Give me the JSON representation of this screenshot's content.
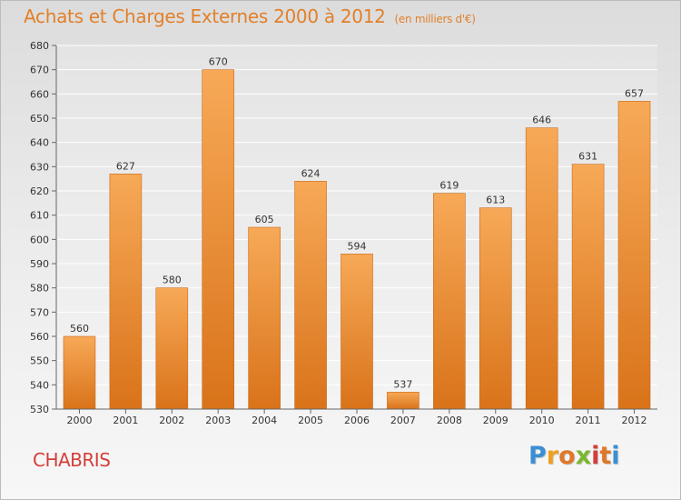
{
  "header": {
    "title": "Achats et Charges Externes 2000 à 2012",
    "unit": "(en milliers d'€)"
  },
  "footer": {
    "commune": "CHABRIS",
    "logo": [
      "P",
      "r",
      "o",
      "x",
      "i",
      "t",
      "i"
    ],
    "logo_colors": [
      "#3a8fd4",
      "#f0a020",
      "#e0782a",
      "#7ab82e",
      "#d43e3a",
      "#e0782a",
      "#3a8fd4"
    ]
  },
  "chart_data": {
    "type": "bar",
    "title": "Achats et Charges Externes 2000 à 2012",
    "subtitle": "(en milliers d'€)",
    "categories": [
      "2000",
      "2001",
      "2002",
      "2003",
      "2004",
      "2005",
      "2006",
      "2007",
      "2008",
      "2009",
      "2010",
      "2011",
      "2012"
    ],
    "values": [
      560,
      627,
      580,
      670,
      605,
      624,
      594,
      537,
      619,
      613,
      646,
      631,
      657
    ],
    "ylim": [
      530,
      680
    ],
    "yticks": [
      530,
      540,
      550,
      560,
      570,
      580,
      590,
      600,
      610,
      620,
      630,
      640,
      650,
      660,
      670,
      680
    ],
    "grid": true,
    "bar_color": "#f0902e"
  }
}
